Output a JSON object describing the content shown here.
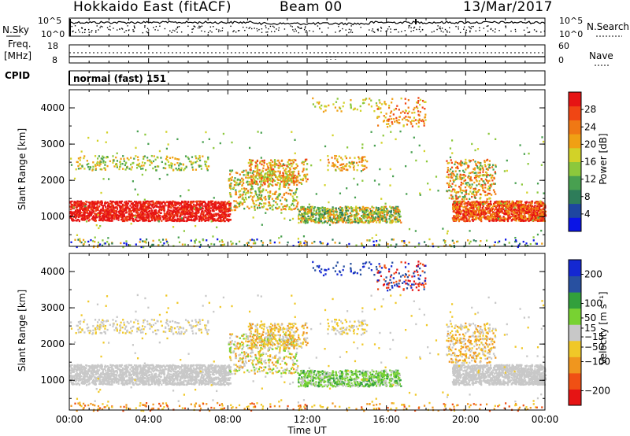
{
  "header": {
    "station": "Hokkaido East (fitACF)",
    "beam": "Beam 00",
    "date": "13/Mar/2017"
  },
  "top_panels": {
    "nsky_label": "N.Sky",
    "nsky_ticks": [
      "10^5",
      "10^0"
    ],
    "nsearch_label": "N.Search",
    "nsearch_ticks": [
      "10^5",
      "10^0"
    ],
    "freq_label_1": "Freq.",
    "freq_label_2": "[MHz]",
    "freq_ticks": [
      "18",
      "8"
    ],
    "nave_label": "Nave",
    "nave_ticks": [
      "60",
      "0"
    ],
    "cpid_label": "CPID",
    "cpid_value": "normal (fast) 151"
  },
  "colors": {
    "power_scale": [
      "#0a14e6",
      "#1e46a0",
      "#2e7d5a",
      "#48a050",
      "#8cc83c",
      "#d2d228",
      "#f0a014",
      "#f07814",
      "#f04614",
      "#e61414"
    ],
    "velocity_scale": [
      "#e61414",
      "#f05014",
      "#f0961e",
      "#f0c828",
      "#c8c8c8",
      "#78d232",
      "#32a03c",
      "#2850a0",
      "#1428d2"
    ]
  },
  "chart_data": [
    {
      "type": "heatmap",
      "name": "power",
      "ylabel": "Slant Range [km]",
      "yticks": [
        "4000",
        "3000",
        "2000",
        "1000"
      ],
      "ylim": [
        180,
        4500
      ],
      "xlim": [
        0,
        24
      ],
      "colorbar_label": "Power [dB]",
      "colorbar_ticks": [
        "28",
        "24",
        "20",
        "16",
        "12",
        "8",
        "4"
      ],
      "colorbar_range": [
        0,
        32
      ]
    },
    {
      "type": "heatmap",
      "name": "velocity",
      "ylabel": "Slant Range [km]",
      "yticks": [
        "4000",
        "3000",
        "2000",
        "1000"
      ],
      "ylim": [
        180,
        4500
      ],
      "xlim": [
        0,
        24
      ],
      "colorbar_label": "Velocity [m s⁻¹]",
      "colorbar_ticks": [
        "200",
        "100",
        "50",
        "15",
        "−15",
        "−50",
        "−100",
        "−200"
      ],
      "colorbar_range": [
        -250,
        250
      ]
    }
  ],
  "xaxis": {
    "label": "Time UT",
    "ticks": [
      "00:00",
      "04:00",
      "08:00",
      "12:00",
      "16:00",
      "20:00",
      "00:00"
    ]
  }
}
